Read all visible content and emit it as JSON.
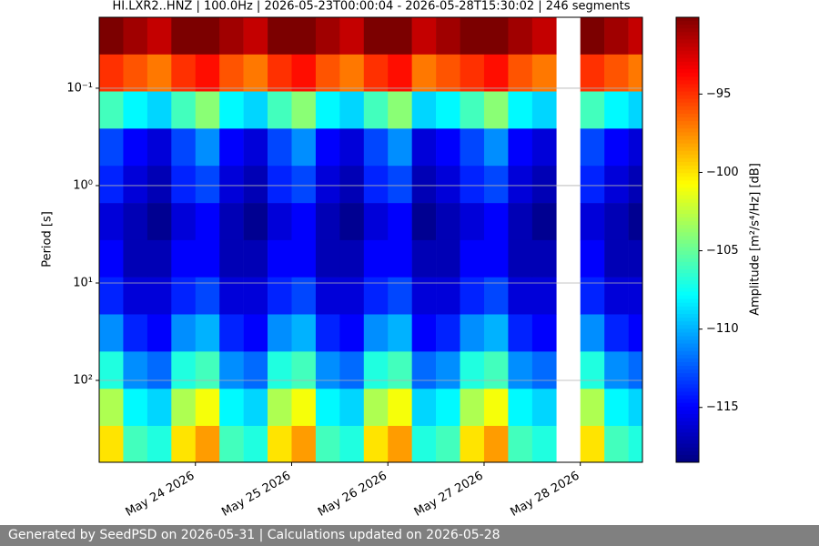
{
  "chart_data": {
    "type": "heatmap",
    "title": "HI.LXR2..HNZ | 100.0Hz | 2026-05-23T00:00:04 - 2026-05-28T15:30:02 | 246 segments",
    "y_label": "Period [s]",
    "colorbar_label": "Amplitude [m²/s⁴/Hz] [dB]",
    "footer": "Generated by SeedPSD on 2026-05-31 | Calculations updated on 2026-05-28",
    "colormap": "jet",
    "y_log": true,
    "y_inverted": true,
    "grid": true,
    "xlim": [
      "2026-05-23T00:00",
      "2026-05-28T15:30"
    ],
    "xticks": [
      {
        "value": "2026-05-24T00:00",
        "label": "May 24 2026"
      },
      {
        "value": "2026-05-25T00:00",
        "label": "May 25 2026"
      },
      {
        "value": "2026-05-26T00:00",
        "label": "May 26 2026"
      },
      {
        "value": "2026-05-27T00:00",
        "label": "May 27 2026"
      },
      {
        "value": "2026-05-28T00:00",
        "label": "May 28 2026"
      }
    ],
    "ylim": [
      0.0187,
      693
    ],
    "yticks": [
      {
        "value": 0.1,
        "label": "10⁻¹"
      },
      {
        "value": 1,
        "label": "10⁰"
      },
      {
        "value": 10,
        "label": "10¹"
      },
      {
        "value": 100,
        "label": "10²"
      }
    ],
    "clim": [
      -118.5,
      -90.1
    ],
    "cticks": [
      -95,
      -100,
      -105,
      -110,
      -115
    ],
    "x": [
      "2026-05-23T00:00",
      "2026-05-23T06:00",
      "2026-05-23T12:00",
      "2026-05-23T18:00",
      "2026-05-24T00:00",
      "2026-05-24T06:00",
      "2026-05-24T12:00",
      "2026-05-24T18:00",
      "2026-05-25T00:00",
      "2026-05-25T06:00",
      "2026-05-25T12:00",
      "2026-05-25T18:00",
      "2026-05-26T00:00",
      "2026-05-26T06:00",
      "2026-05-26T12:00",
      "2026-05-26T18:00",
      "2026-05-27T00:00",
      "2026-05-27T06:00",
      "2026-05-27T12:00",
      "2026-05-27T18:00",
      "2026-05-28T00:00",
      "2026-05-28T06:00",
      "2026-05-28T12:00"
    ],
    "y_edges": [
      0.0187,
      0.045,
      0.108,
      0.26,
      0.626,
      1.51,
      3.63,
      8.73,
      21.0,
      50.6,
      122,
      293,
      693
    ],
    "z": [
      [
        -90,
        -95,
        -106,
        -113,
        -114,
        -116,
        -115,
        -114,
        -111,
        -107,
        -103,
        -100
      ],
      [
        -91,
        -96,
        -108,
        -115,
        -116,
        -117,
        -117,
        -116,
        -114,
        -111,
        -108,
        -106
      ],
      [
        -92,
        -97,
        -109,
        -116,
        -117,
        -118,
        -117,
        -116,
        -115,
        -112,
        -109,
        -107
      ],
      [
        -90,
        -95,
        -106,
        -113,
        -114,
        -116,
        -115,
        -114,
        -111,
        -107,
        -103,
        -100
      ],
      [
        -90,
        -94,
        -104,
        -111,
        -113,
        -115,
        -115,
        -113,
        -110,
        -106,
        -101,
        -98
      ],
      [
        -91,
        -96,
        -108,
        -115,
        -116,
        -117,
        -117,
        -116,
        -114,
        -111,
        -108,
        -106
      ],
      [
        -92,
        -97,
        -109,
        -116,
        -117,
        -118,
        -117,
        -116,
        -115,
        -112,
        -109,
        -107
      ],
      [
        -90,
        -95,
        -106,
        -113,
        -114,
        -116,
        -115,
        -114,
        -111,
        -107,
        -103,
        -100
      ],
      [
        -90,
        -94,
        -104,
        -111,
        -113,
        -115,
        -115,
        -113,
        -110,
        -106,
        -101,
        -98
      ],
      [
        -91,
        -96,
        -108,
        -115,
        -116,
        -117,
        -117,
        -116,
        -114,
        -111,
        -108,
        -106
      ],
      [
        -92,
        -97,
        -109,
        -116,
        -117,
        -118,
        -117,
        -116,
        -115,
        -112,
        -109,
        -107
      ],
      [
        -90,
        -95,
        -106,
        -113,
        -114,
        -116,
        -115,
        -114,
        -111,
        -107,
        -103,
        -100
      ],
      [
        -90,
        -94,
        -104,
        -111,
        -113,
        -115,
        -115,
        -113,
        -110,
        -106,
        -101,
        -98
      ],
      [
        -92,
        -97,
        -109,
        -116,
        -117,
        -118,
        -117,
        -116,
        -115,
        -112,
        -109,
        -107
      ],
      [
        -91,
        -96,
        -108,
        -115,
        -116,
        -117,
        -117,
        -116,
        -114,
        -111,
        -108,
        -106
      ],
      [
        -90,
        -95,
        -106,
        -113,
        -114,
        -116,
        -115,
        -114,
        -111,
        -107,
        -103,
        -100
      ],
      [
        -90,
        -94,
        -104,
        -111,
        -113,
        -115,
        -115,
        -113,
        -110,
        -106,
        -101,
        -98
      ],
      [
        -91,
        -96,
        -108,
        -115,
        -116,
        -117,
        -117,
        -116,
        -114,
        -111,
        -108,
        -106
      ],
      [
        -92,
        -97,
        -109,
        -116,
        -117,
        -118,
        -117,
        -116,
        -115,
        -112,
        -109,
        -107
      ],
      null,
      [
        -90,
        -95,
        -106,
        -113,
        -114,
        -116,
        -115,
        -114,
        -111,
        -107,
        -103,
        -100
      ],
      [
        -91,
        -96,
        -108,
        -115,
        -116,
        -117,
        -117,
        -116,
        -114,
        -111,
        -108,
        -106
      ],
      [
        -92,
        -97,
        -109,
        -116,
        -117,
        -118,
        -117,
        -116,
        -115,
        -112,
        -109,
        -107
      ]
    ]
  }
}
